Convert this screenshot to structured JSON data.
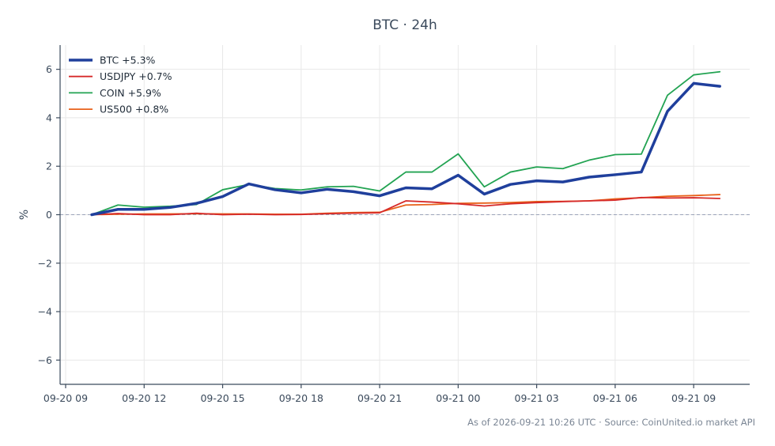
{
  "chart_data": {
    "type": "line",
    "title": "BTC · 24h",
    "xlabel": "",
    "ylabel": "%",
    "ylim": [
      -7,
      7
    ],
    "yticks": [
      -6,
      -4,
      -2,
      0,
      2,
      4,
      6
    ],
    "ytick_labels": [
      "−6",
      "−4",
      "−2",
      "0",
      "2",
      "4",
      "6"
    ],
    "xticks": [
      "09-20 09",
      "09-20 12",
      "09-20 15",
      "09-20 18",
      "09-20 21",
      "09-21 00",
      "09-21 03",
      "09-21 06",
      "09-21 09"
    ],
    "x": [
      "09-20 10",
      "09-20 11",
      "09-20 12",
      "09-20 13",
      "09-20 14",
      "09-20 15",
      "09-20 16",
      "09-20 17",
      "09-20 18",
      "09-20 19",
      "09-20 20",
      "09-20 21",
      "09-20 22",
      "09-20 23",
      "09-21 00",
      "09-21 01",
      "09-21 02",
      "09-21 03",
      "09-21 04",
      "09-21 05",
      "09-21 06",
      "09-21 07",
      "09-21 08",
      "09-21 09",
      "09-21 10"
    ],
    "grid": true,
    "zero_line": true,
    "legend_position": "top-left",
    "series": [
      {
        "name": "BTC +5.3%",
        "color": "#1f3f9c",
        "width": 3.5,
        "values": [
          0.0,
          0.22,
          0.22,
          0.3,
          0.47,
          0.75,
          1.27,
          1.03,
          0.9,
          1.05,
          0.95,
          0.78,
          1.11,
          1.07,
          1.63,
          0.85,
          1.25,
          1.4,
          1.35,
          1.55,
          1.65,
          1.76,
          4.27,
          5.42,
          5.3
        ]
      },
      {
        "name": "USDJPY +0.7%",
        "color": "#d62a2a",
        "width": 1.8,
        "values": [
          0.0,
          0.05,
          0.0,
          0.0,
          0.06,
          0.0,
          0.02,
          0.0,
          0.01,
          0.04,
          0.06,
          0.08,
          0.57,
          0.52,
          0.45,
          0.36,
          0.45,
          0.5,
          0.54,
          0.57,
          0.6,
          0.71,
          0.69,
          0.7,
          0.67
        ]
      },
      {
        "name": "COIN +5.9%",
        "color": "#22a352",
        "width": 1.8,
        "values": [
          0.0,
          0.4,
          0.31,
          0.35,
          0.42,
          1.03,
          1.25,
          1.08,
          1.02,
          1.15,
          1.17,
          0.98,
          1.76,
          1.76,
          2.51,
          1.15,
          1.76,
          1.97,
          1.9,
          2.25,
          2.48,
          2.5,
          4.93,
          5.77,
          5.9
        ]
      },
      {
        "name": "US500 +0.8%",
        "color": "#e8611a",
        "width": 1.8,
        "values": [
          0.0,
          0.02,
          0.03,
          0.03,
          0.04,
          0.03,
          0.03,
          0.02,
          0.02,
          0.06,
          0.09,
          0.1,
          0.4,
          0.42,
          0.47,
          0.48,
          0.5,
          0.54,
          0.55,
          0.57,
          0.65,
          0.7,
          0.76,
          0.79,
          0.83
        ]
      }
    ],
    "footer": "As of 2026-09-21 10:26 UTC · Source: CoinUnited.io market API"
  }
}
